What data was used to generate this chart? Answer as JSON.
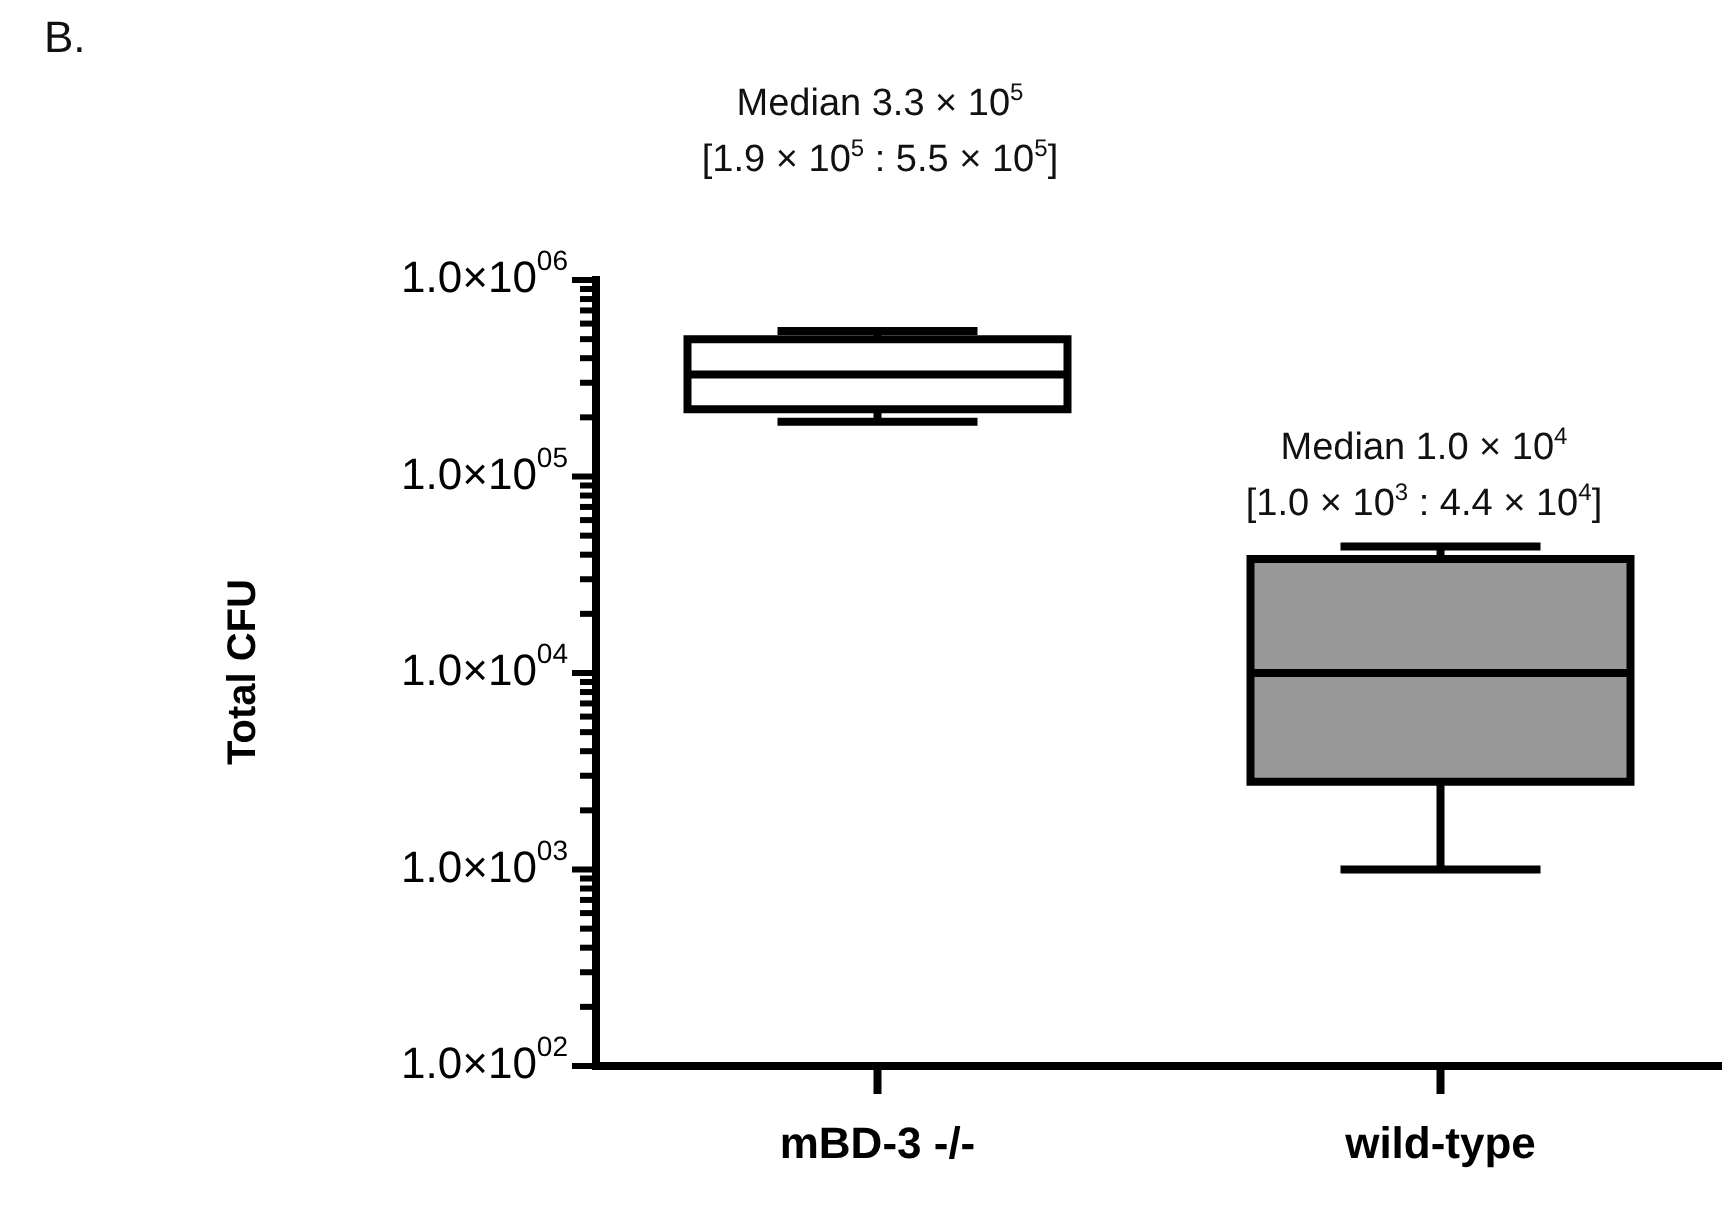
{
  "chart_data": {
    "type": "box",
    "ylabel": "Total CFU",
    "annotations": [
      "B.",
      "Median 3.3 × 10$^{5}$",
      "[1.9 × 10$^{5}$ : 5.5 × 10$^{5}$]",
      "Median 1.0 × 10$^{4}$",
      "[1.0 × 10$^{3}$ : 4.4 × 10$^{4}$]"
    ],
    "categories": [
      "mBD-3 -/-",
      "wild-type"
    ],
    "boxes": [
      {
        "low": 190000,
        "q1": 220000,
        "median": 330000,
        "q3": 500000,
        "high": 550000
      },
      {
        "low": 1000,
        "q1": 2800,
        "median": 10000,
        "q3": 38000,
        "high": 44000
      }
    ],
    "colors": [
      "#ffffff",
      "#999999"
    ],
    "log": true,
    "ylim": [
      100,
      1000000
    ],
    "yticks": [
      {
        "value": 100,
        "label": "1.0×10$^{02}$"
      },
      {
        "value": 200,
        "label": null
      },
      {
        "value": 300,
        "label": null
      },
      {
        "value": 400,
        "label": null
      },
      {
        "value": 500,
        "label": null
      },
      {
        "value": 600,
        "label": null
      },
      {
        "value": 700,
        "label": null
      },
      {
        "value": 800,
        "label": null
      },
      {
        "value": 900,
        "label": null
      },
      {
        "value": 1000,
        "label": "1.0×10$^{03}$"
      },
      {
        "value": 2000,
        "label": null
      },
      {
        "value": 3000,
        "label": null
      },
      {
        "value": 4000,
        "label": null
      },
      {
        "value": 5000,
        "label": null
      },
      {
        "value": 6000,
        "label": null
      },
      {
        "value": 7000,
        "label": null
      },
      {
        "value": 8000,
        "label": null
      },
      {
        "value": 9000,
        "label": null
      },
      {
        "value": 10000,
        "label": "1.0×10$^{04}$"
      },
      {
        "value": 20000,
        "label": null
      },
      {
        "value": 30000,
        "label": null
      },
      {
        "value": 40000,
        "label": null
      },
      {
        "value": 50000,
        "label": null
      },
      {
        "value": 60000,
        "label": null
      },
      {
        "value": 70000,
        "label": null
      },
      {
        "value": 80000,
        "label": null
      },
      {
        "value": 90000,
        "label": null
      },
      {
        "value": 100000,
        "label": "1.0×10$^{05}$"
      },
      {
        "value": 200000,
        "label": null
      },
      {
        "value": 300000,
        "label": null
      },
      {
        "value": 400000,
        "label": null
      },
      {
        "value": 500000,
        "label": null
      },
      {
        "value": 600000,
        "label": null
      },
      {
        "value": 700000,
        "label": null
      },
      {
        "value": 800000,
        "label": null
      },
      {
        "value": 900000,
        "label": null
      },
      {
        "value": 1000000,
        "label": "1.0×10$^{06}$"
      }
    ]
  }
}
